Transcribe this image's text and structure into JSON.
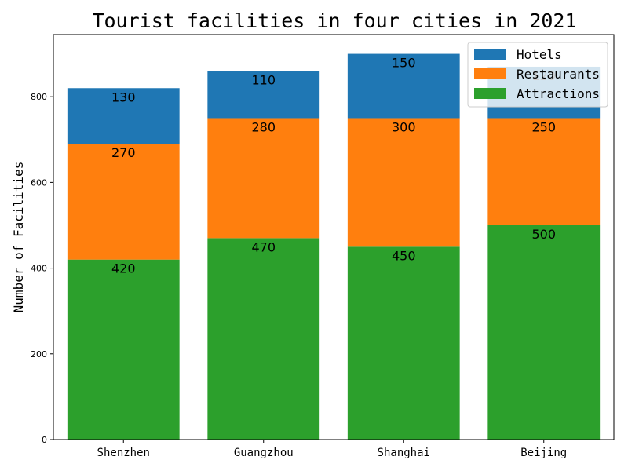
{
  "chart_data": {
    "type": "bar",
    "stacked": true,
    "title": "Tourist facilities in four cities in 2021",
    "xlabel": "",
    "ylabel": "Number of Facilities",
    "categories": [
      "Shenzhen",
      "Guangzhou",
      "Shanghai",
      "Beijing"
    ],
    "series": [
      {
        "name": "Attractions",
        "values": [
          420,
          470,
          450,
          500
        ],
        "color": "#2ca02c"
      },
      {
        "name": "Restaurants",
        "values": [
          270,
          280,
          300,
          250
        ],
        "color": "#ff7f0e"
      },
      {
        "name": "Hotels",
        "values": [
          130,
          110,
          150,
          120
        ],
        "color": "#1f77b4"
      }
    ],
    "legend_order": [
      "Hotels",
      "Restaurants",
      "Attractions"
    ],
    "legend_position": "top-right",
    "ylim": [
      0,
      945
    ],
    "yticks": [
      0,
      200,
      400,
      600,
      800
    ],
    "grid": false
  }
}
